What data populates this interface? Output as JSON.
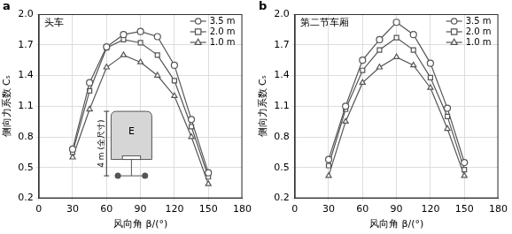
{
  "chart_data": [
    {
      "type": "line",
      "panel": "a",
      "title": "头车",
      "x_label": "风向角 β/(°)",
      "y_label": "侧向力系数 Cₛ",
      "x": [
        30,
        45,
        60,
        75,
        90,
        105,
        120,
        135,
        150
      ],
      "series": [
        {
          "name": "3.5 m",
          "color": "#555555",
          "marker": "circle",
          "values": [
            0.68,
            1.33,
            1.68,
            1.8,
            1.83,
            1.78,
            1.5,
            0.97,
            0.45
          ]
        },
        {
          "name": "2.0 m",
          "color": "#555555",
          "marker": "square",
          "values": [
            0.65,
            1.25,
            1.67,
            1.75,
            1.72,
            1.6,
            1.35,
            0.9,
            0.41
          ]
        },
        {
          "name": "1.0 m",
          "color": "#555555",
          "marker": "triangle",
          "values": [
            0.6,
            1.07,
            1.48,
            1.6,
            1.53,
            1.4,
            1.2,
            0.8,
            0.34
          ]
        }
      ],
      "xlim": [
        0,
        180
      ],
      "xticks": [
        0,
        30,
        60,
        90,
        120,
        150,
        180
      ],
      "ylim": [
        0.2,
        2.0
      ],
      "yticks": [
        0.2,
        0.5,
        0.8,
        1.1,
        1.4,
        1.7,
        {
          "value": 2.0,
          "label": "2.0"
        }
      ],
      "grid": true,
      "legend": "upper right",
      "annotations": {
        "inset_label": "E",
        "inset_dimension": "4 m (全尺寸)"
      }
    },
    {
      "type": "line",
      "panel": "b",
      "title": "第二节车厢",
      "x_label": "风向角 β/(°)",
      "y_label": "侧向力系数 Cₛ",
      "x": [
        30,
        45,
        60,
        75,
        90,
        105,
        120,
        135,
        150
      ],
      "series": [
        {
          "name": "3.5 m",
          "color": "#555555",
          "marker": "circle",
          "values": [
            0.58,
            1.1,
            1.55,
            1.75,
            1.92,
            1.8,
            1.52,
            1.08,
            0.55
          ]
        },
        {
          "name": "2.0 m",
          "color": "#555555",
          "marker": "square",
          "values": [
            0.52,
            1.07,
            1.45,
            1.65,
            1.77,
            1.65,
            1.38,
            1.0,
            0.48
          ]
        },
        {
          "name": "1.0 m",
          "color": "#555555",
          "marker": "triangle",
          "values": [
            0.42,
            0.95,
            1.33,
            1.48,
            1.58,
            1.5,
            1.28,
            0.88,
            0.42
          ]
        }
      ],
      "xlim": [
        0,
        180
      ],
      "xticks": [
        0,
        30,
        60,
        90,
        120,
        150,
        180
      ],
      "ylim": [
        0.2,
        2.0
      ],
      "yticks": [
        0.2,
        0.5,
        0.8,
        1.1,
        1.4,
        1.7,
        {
          "value": 2.0,
          "label": "2.0"
        }
      ],
      "grid": true,
      "legend": "upper right"
    }
  ]
}
